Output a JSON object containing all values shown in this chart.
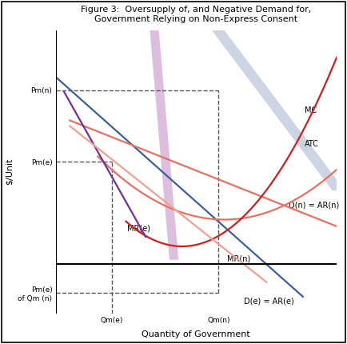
{
  "title": "Figure 3:  Oversupply of, and Negative Demand for,\nGovernment Relying on Non-Express Consent",
  "xlabel": "Quantity of Government",
  "ylabel": "$/Unit",
  "xlim": [
    0,
    10
  ],
  "ylim": [
    -2.2,
    10.5
  ],
  "Pm_n": 7.8,
  "Pm_e": 4.6,
  "Pm_e_of_Qm_n": -1.3,
  "Qm_e": 2.0,
  "Qm_n": 5.8,
  "colors": {
    "De_ARe": "#3A5FA0",
    "Dn_ARn": "#E87060",
    "ATC": "#E87060",
    "MC": "#CC2020",
    "MRe": "#7030A0",
    "MRn": "#F0A090",
    "band_purple": "#D4A8D4",
    "band_blue": "#B8C4D8",
    "dashes": "#555555",
    "axis": "#333333"
  }
}
